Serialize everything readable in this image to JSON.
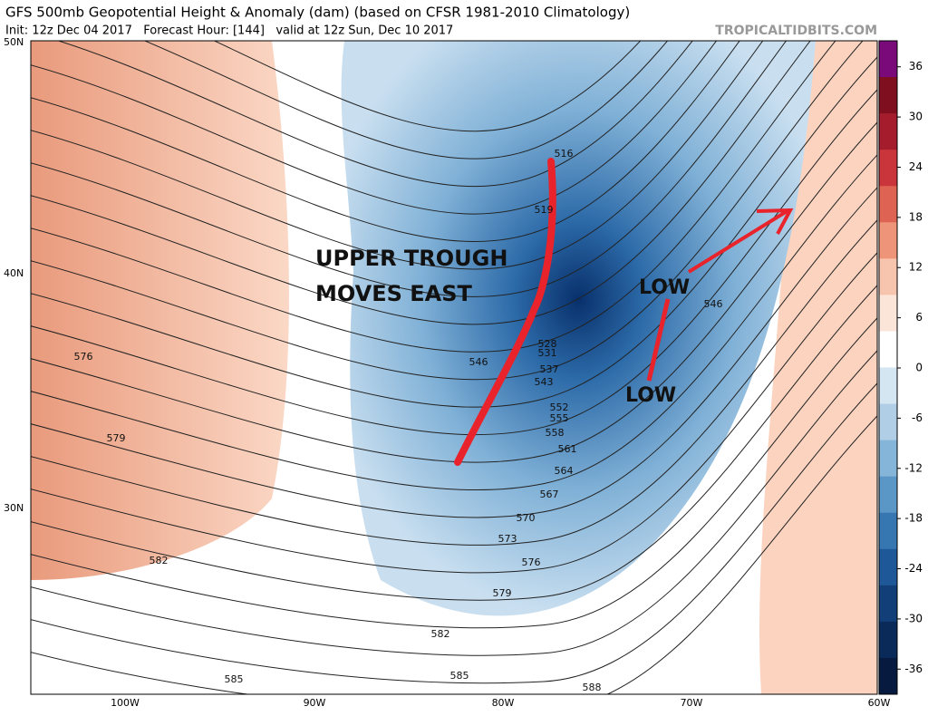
{
  "header": {
    "title": "GFS 500mb Geopotential Height & Anomaly (dam) (based on CFSR 1981-2010 Climatology)",
    "subtitle": "Init: 12z Dec 04 2017   Forecast Hour: [144]   valid at 12z Sun, Dec 10 2017",
    "credit": "TROPICALTIDBITS.COM"
  },
  "map": {
    "lat_labels": [
      "50N",
      "40N",
      "30N"
    ],
    "lon_labels": [
      "100W",
      "90W",
      "80W",
      "70W",
      "60W"
    ],
    "contour_labels": [
      "516",
      "519",
      "528",
      "531",
      "546",
      "537",
      "543",
      "552",
      "555",
      "558",
      "561",
      "564",
      "567",
      "570",
      "573",
      "576",
      "579",
      "582",
      "585",
      "588",
      "546",
      "576",
      "579",
      "582",
      "585"
    ],
    "annotations": [
      "UPPER TROUGH",
      "MOVES EAST",
      "LOW",
      "LOW"
    ]
  },
  "colorbar": {
    "ticks": [
      36,
      30,
      24,
      18,
      12,
      6,
      0,
      -6,
      -12,
      -18,
      -24,
      -30,
      -36
    ]
  }
}
